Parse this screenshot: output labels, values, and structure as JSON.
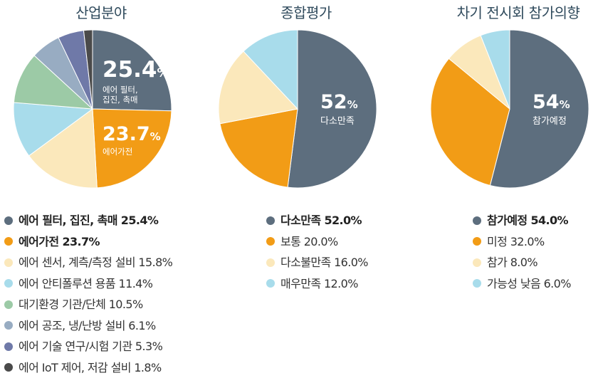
{
  "chart_data": [
    {
      "type": "pie",
      "title": "산업분야",
      "slices": [
        {
          "label": "에어 필터, 집진, 촉매",
          "value": 25.4,
          "value_text": "25.4%",
          "color": "#5d6e7e",
          "bold": true
        },
        {
          "label": "에어가전",
          "value": 23.7,
          "value_text": "23.7%",
          "color": "#f29c16",
          "bold": true
        },
        {
          "label": "에어 센서, 계측/측정 설비",
          "value": 15.8,
          "value_text": "15.8%",
          "color": "#fbe8bb",
          "bold": false
        },
        {
          "label": "에어 안티폴루션 용품",
          "value": 11.4,
          "value_text": "11.4%",
          "color": "#a8dceb",
          "bold": false
        },
        {
          "label": "대기환경 기관/단체",
          "value": 10.5,
          "value_text": "10.5%",
          "color": "#9ccaa6",
          "bold": false
        },
        {
          "label": "에어 공조, 냉/난방 설비",
          "value": 6.1,
          "value_text": " 6.1%",
          "color": "#98acc2",
          "bold": false
        },
        {
          "label": "에어 기술 연구/시험 기관",
          "value": 5.3,
          "value_text": " 5.3%",
          "color": "#6f79a8",
          "bold": false
        },
        {
          "label": "에어 IoT 제어, 저감 설비",
          "value": 1.8,
          "value_text": " 1.8%",
          "color": "#4a4a4a",
          "bold": false
        }
      ],
      "callouts": [
        {
          "num": "25.4",
          "unit": "%",
          "lines": [
            "에어 필터,",
            "집진, 촉매"
          ]
        },
        {
          "num": "23.7",
          "unit": "%",
          "lines": [
            "에어가전"
          ]
        }
      ]
    },
    {
      "type": "pie",
      "title": "종합평가",
      "slices": [
        {
          "label": "다소만족",
          "value": 52.0,
          "value_text": "52.0%",
          "color": "#5d6e7e",
          "bold": true
        },
        {
          "label": "보통",
          "value": 20.0,
          "value_text": "20.0%",
          "color": "#f29c16",
          "bold": false
        },
        {
          "label": "다소불만족",
          "value": 16.0,
          "value_text": "16.0%",
          "color": "#fbe8bb",
          "bold": false
        },
        {
          "label": "매우만족",
          "value": 12.0,
          "value_text": "12.0%",
          "color": "#a8dceb",
          "bold": false
        }
      ],
      "callouts": [
        {
          "num": "52",
          "unit": "%",
          "lines": [
            "다소만족"
          ]
        }
      ]
    },
    {
      "type": "pie",
      "title": "차기 전시회 참가의향",
      "slices": [
        {
          "label": "참가예정",
          "value": 54.0,
          "value_text": "54.0%",
          "color": "#5d6e7e",
          "bold": true
        },
        {
          "label": "미정",
          "value": 32.0,
          "value_text": "32.0%",
          "color": "#f29c16",
          "bold": false
        },
        {
          "label": "참가",
          "value": 8.0,
          "value_text": "8.0%",
          "color": "#fbe8bb",
          "bold": false
        },
        {
          "label": "가능성 낮음",
          "value": 6.0,
          "value_text": "6.0%",
          "color": "#a8dceb",
          "bold": false
        }
      ],
      "callouts": [
        {
          "num": "54",
          "unit": "%",
          "lines": [
            "참가예정"
          ]
        }
      ]
    }
  ]
}
